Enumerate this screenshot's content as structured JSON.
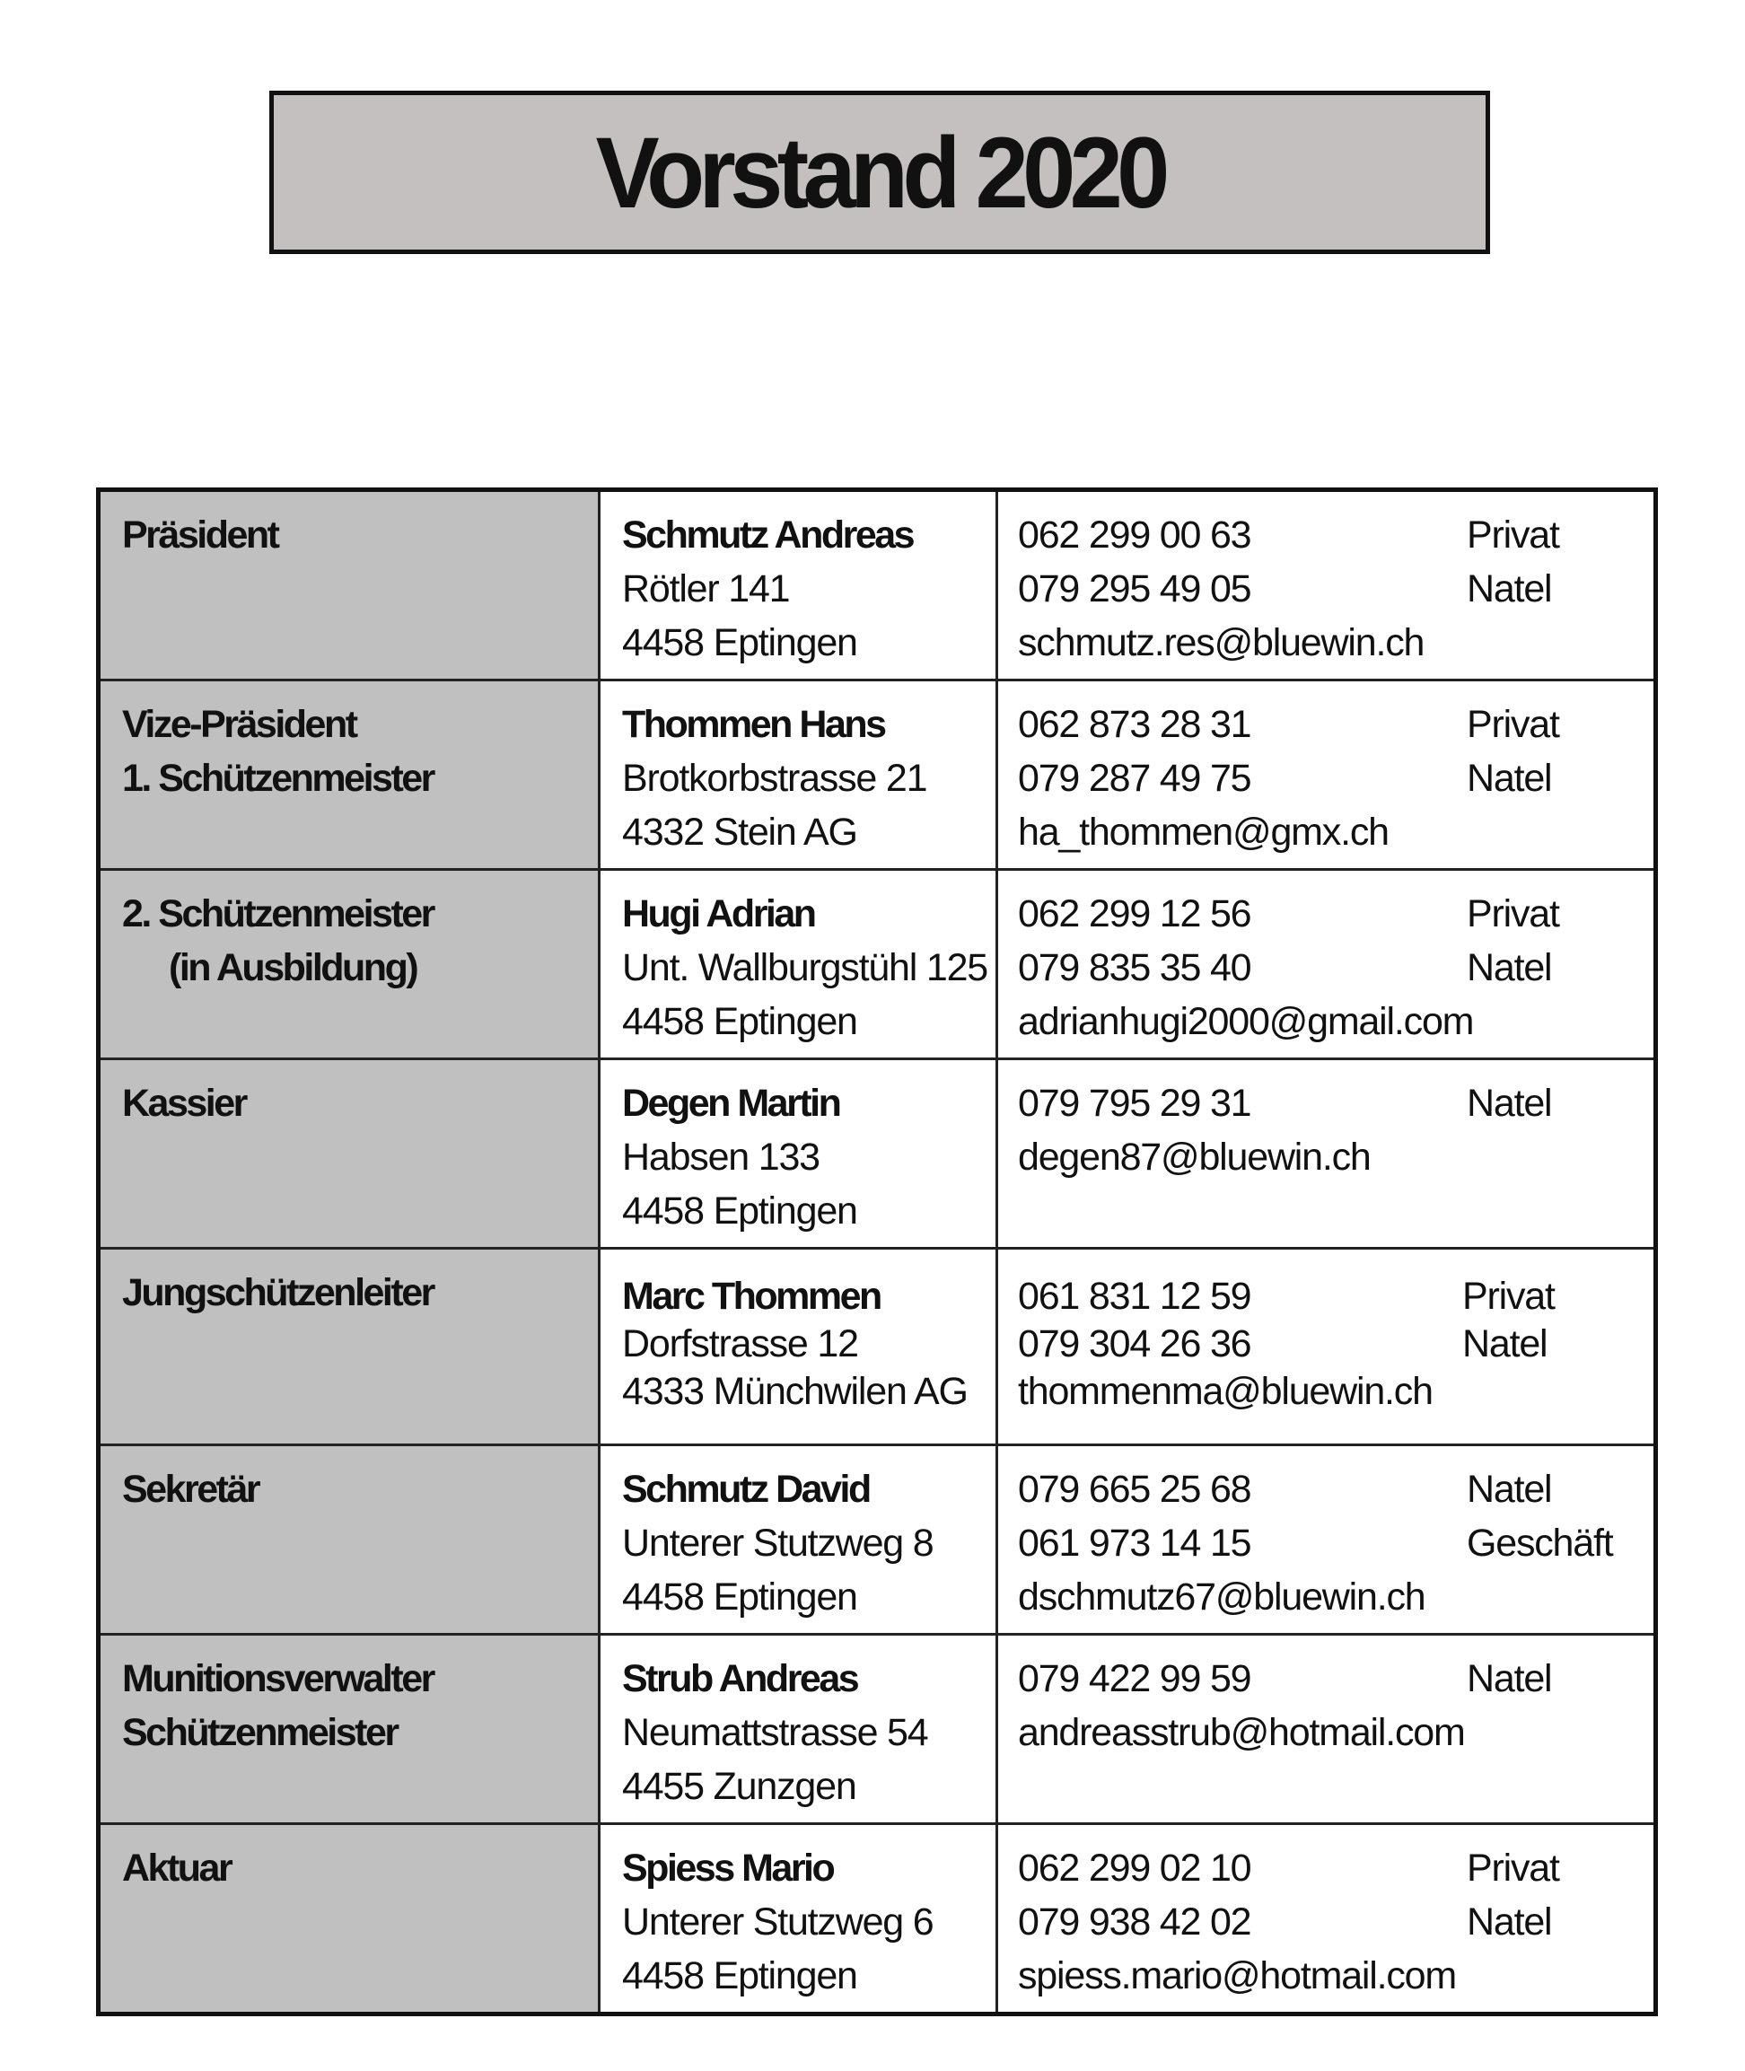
{
  "title": "Vorstand 2020",
  "members": [
    {
      "role": [
        "Präsident"
      ],
      "name": "Schmutz Andreas",
      "address": [
        "Rötler 141",
        "4458 Eptingen"
      ],
      "contacts": [
        {
          "value": "062 299 00 63",
          "type": "Privat"
        },
        {
          "value": "079 295 49 05",
          "type": "Natel"
        },
        {
          "value": "schmutz.res@bluewin.ch",
          "type": ""
        }
      ]
    },
    {
      "role": [
        "Vize-Präsident",
        "1. Schützenmeister"
      ],
      "name": "Thommen Hans",
      "address": [
        "Brotkorbstrasse 21",
        "4332 Stein AG"
      ],
      "contacts": [
        {
          "value": "062 873 28 31",
          "type": "Privat"
        },
        {
          "value": "079 287 49 75",
          "type": "Natel"
        },
        {
          "value": "ha_thommen@gmx.ch",
          "type": ""
        }
      ]
    },
    {
      "role": [
        "2. Schützenmeister",
        "(in Ausbildung)"
      ],
      "name": "Hugi Adrian",
      "address": [
        "Unt. Wallburgstühl 125",
        "4458 Eptingen"
      ],
      "contacts": [
        {
          "value": "062 299 12 56",
          "type": "Privat"
        },
        {
          "value": "079 835 35 40",
          "type": "Natel"
        },
        {
          "value": "adrianhugi2000@gmail.com",
          "type": ""
        }
      ]
    },
    {
      "role": [
        "Kassier"
      ],
      "name": "Degen Martin",
      "address": [
        "Habsen 133",
        "4458 Eptingen"
      ],
      "contacts": [
        {
          "value": "079 795 29 31",
          "type": "Natel"
        },
        {
          "value": "degen87@bluewin.ch",
          "type": ""
        }
      ]
    },
    {
      "role": [
        "Jungschützenleiter"
      ],
      "name": "Marc Thommen",
      "address": [
        "Dorfstrasse 12",
        "4333 Münchwilen AG"
      ],
      "contacts": [
        {
          "value": "061 831 12 59",
          "type": "Privat"
        },
        {
          "value": "079 304 26 36",
          "type": "Natel"
        },
        {
          "value": "thommenma@bluewin.ch",
          "type": ""
        }
      ]
    },
    {
      "role": [
        "Sekretär"
      ],
      "name": "Schmutz David",
      "address": [
        "Unterer Stutzweg 8",
        "4458 Eptingen"
      ],
      "contacts": [
        {
          "value": "079 665 25 68",
          "type": "Natel"
        },
        {
          "value": "061 973 14 15",
          "type": "Geschäft"
        },
        {
          "value": "dschmutz67@bluewin.ch",
          "type": ""
        }
      ]
    },
    {
      "role": [
        "Munitionsverwalter",
        "Schützenmeister"
      ],
      "name": "Strub Andreas",
      "address": [
        "Neumattstrasse 54",
        "4455 Zunzgen"
      ],
      "contacts": [
        {
          "value": "079 422 99 59",
          "type": "Natel"
        },
        {
          "value": "andreasstrub@hotmail.com",
          "type": ""
        }
      ]
    },
    {
      "role": [
        "Aktuar"
      ],
      "name": "Spiess Mario",
      "address": [
        "Unterer Stutzweg 6",
        "4458 Eptingen"
      ],
      "contacts": [
        {
          "value": "062 299 02 10",
          "type": "Privat"
        },
        {
          "value": "079 938 42 02",
          "type": "Natel"
        },
        {
          "value": "spiess.mario@hotmail.com",
          "type": ""
        }
      ]
    }
  ]
}
